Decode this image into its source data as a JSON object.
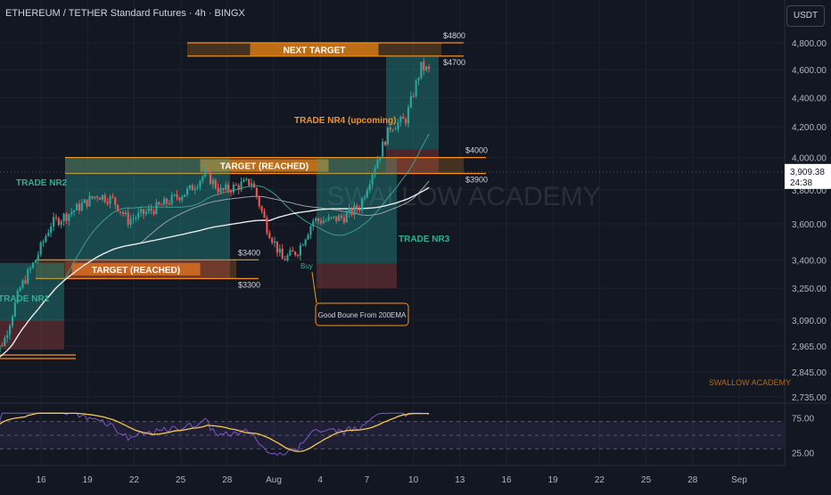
{
  "header": {
    "title": "ETHEREUM / TETHER Standard Futures · 4h · BINGX"
  },
  "unit_button": "USDT",
  "watermark": "SWALLOW ACADEMY",
  "watermark_small": "SWALLOW ACADEMY",
  "colors": {
    "background": "#131722",
    "grid": "#1e222d",
    "up": "#26a69a",
    "down": "#ef5350",
    "target_orange": "#f7931a",
    "teal_label": "#2bb18f",
    "ema_white": "#e8e8e8",
    "ma_grey": "#9a9ea8",
    "ma_teal": "#3f9c8e",
    "rsi_line": "#7e57c2",
    "rsi_ma": "#f7c948"
  },
  "chart_data": [
    {
      "type": "candlestick",
      "title": "ETHEREUM / TETHER Standard Futures · 4h · BINGX",
      "y_unit": "USDT",
      "y_scale": "log",
      "ylim": [
        2700,
        4950
      ],
      "y_ticks": [
        "4,800.00",
        "4,600.00",
        "4,400.00",
        "4,200.00",
        "4,000.00",
        "3,800.00",
        "3,600.00",
        "3,400.00",
        "3,250.00",
        "3,090.00",
        "2,965.00",
        "2,845.00",
        "2,735.00"
      ],
      "x_ticks": [
        "16",
        "19",
        "22",
        "25",
        "28",
        "Aug",
        "4",
        "7",
        "10",
        "13",
        "16",
        "19",
        "22",
        "25",
        "28",
        "Sep"
      ],
      "last_price": "3,909.38",
      "countdown": "24:38",
      "price_series_keypoints": [
        {
          "date": "Jul 14",
          "price": 2880
        },
        {
          "date": "Jul 15",
          "price": 3000
        },
        {
          "date": "Jul 16",
          "price": 3250
        },
        {
          "date": "Jul 17",
          "price": 3400
        },
        {
          "date": "Jul 18",
          "price": 3600
        },
        {
          "date": "Jul 19",
          "price": 3650
        },
        {
          "date": "Jul 21",
          "price": 3770
        },
        {
          "date": "Jul 22",
          "price": 3740
        },
        {
          "date": "Jul 23",
          "price": 3620
        },
        {
          "date": "Jul 25",
          "price": 3700
        },
        {
          "date": "Jul 27",
          "price": 3800
        },
        {
          "date": "Jul 28",
          "price": 3900
        },
        {
          "date": "Jul 29",
          "price": 3790
        },
        {
          "date": "Jul 30",
          "price": 3820
        },
        {
          "date": "Jul 31",
          "price": 3850
        },
        {
          "date": "Aug 1",
          "price": 3580
        },
        {
          "date": "Aug 2",
          "price": 3400
        },
        {
          "date": "Aug 3",
          "price": 3450
        },
        {
          "date": "Aug 4",
          "price": 3620
        },
        {
          "date": "Aug 5",
          "price": 3620
        },
        {
          "date": "Aug 6",
          "price": 3640
        },
        {
          "date": "Aug 7",
          "price": 3700
        },
        {
          "date": "Aug 8",
          "price": 3950
        },
        {
          "date": "Aug 9",
          "price": 4200
        },
        {
          "date": "Aug 10",
          "price": 4250
        },
        {
          "date": "Aug 11",
          "price": 4620
        },
        {
          "date": "Aug 11.5",
          "price": 4590
        }
      ],
      "annotations": [
        {
          "label": "NEXT TARGET",
          "kind": "target_zone",
          "upper_price": "$4800",
          "lower_price": "$4700"
        },
        {
          "label": "TARGET (REACHED)",
          "kind": "target_zone",
          "upper_price": "$4000",
          "lower_price": "$3900"
        },
        {
          "label": "TARGET (REACHED)",
          "kind": "target_zone",
          "upper_price": "$3400",
          "lower_price": "$3300"
        },
        {
          "label": "TRADE NR1",
          "kind": "trade"
        },
        {
          "label": "TRADE NR2",
          "kind": "trade"
        },
        {
          "label": "TRADE NR3",
          "kind": "trade"
        },
        {
          "label": "TRADE NR4 (upcoming)",
          "kind": "trade"
        },
        {
          "label": "Good Boune From 200EMA",
          "kind": "callout"
        },
        {
          "label": "Buy",
          "kind": "marker"
        }
      ]
    },
    {
      "type": "line",
      "name_visible": "",
      "y_ticks": [
        "75.00",
        "25.00"
      ],
      "ylim": [
        15,
        85
      ],
      "bands": [
        70,
        50,
        30
      ]
    }
  ]
}
